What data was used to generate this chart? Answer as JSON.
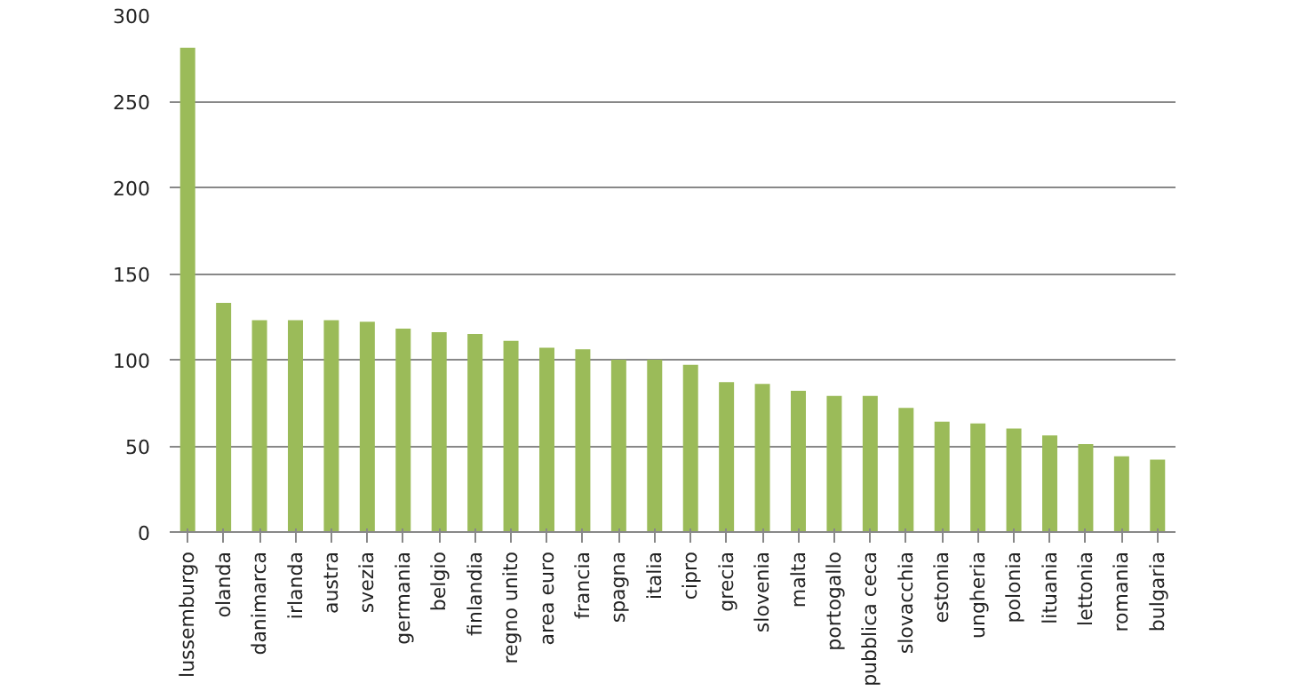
{
  "chart_data": {
    "type": "bar",
    "categories": [
      "lussemburgo",
      "olanda",
      "danimarca",
      "irlanda",
      "austra",
      "svezia",
      "germania",
      "belgio",
      "finlandia",
      "regno unito",
      "area euro",
      "francia",
      "spagna",
      "italia",
      "cipro",
      "grecia",
      "slovenia",
      "malta",
      "portogallo",
      "pubblica ceca",
      "slovacchia",
      "estonia",
      "ungheria",
      "polonia",
      "lituania",
      "lettonia",
      "romania",
      "bulgaria"
    ],
    "values": [
      281,
      133,
      123,
      123,
      123,
      122,
      118,
      116,
      115,
      111,
      107,
      106,
      100,
      100,
      97,
      87,
      86,
      82,
      79,
      79,
      72,
      64,
      63,
      60,
      56,
      51,
      44,
      42
    ],
    "color": "#9bbb59",
    "ylim": [
      0,
      300
    ],
    "yticks": [
      0,
      50,
      100,
      150,
      200,
      250,
      300
    ],
    "grid": "y"
  }
}
